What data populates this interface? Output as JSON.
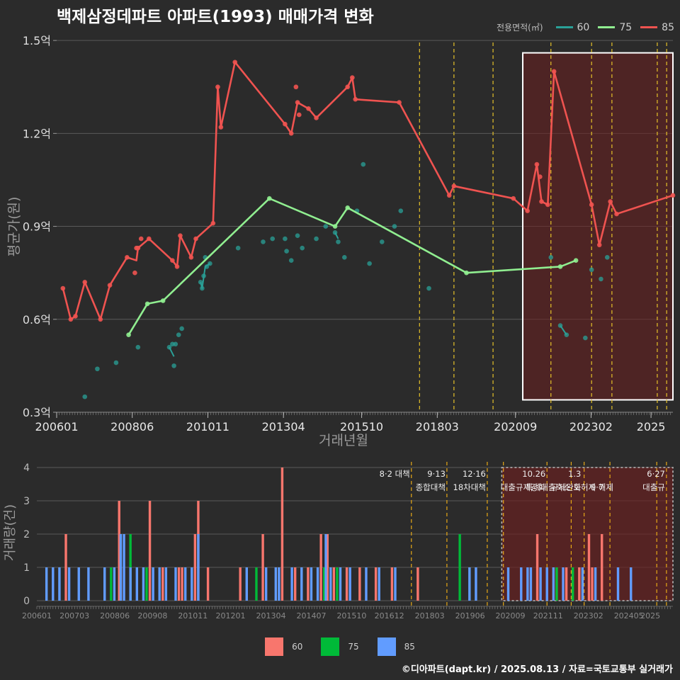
{
  "title": "백제삼정데파트 아파트(1993) 매매가격 변화",
  "credit": "©디아파트(dapt.kr) / 2025.08.13 / 자료=국토교통부 실거래가",
  "legend": {
    "title": "전용면적(㎡)",
    "items": [
      {
        "label": "60",
        "line_color": "#2aa198",
        "bar_color": "#f8766d"
      },
      {
        "label": "75",
        "line_color": "#90ee90",
        "bar_color": "#00ba38"
      },
      {
        "label": "85",
        "line_color": "#ef5350",
        "bar_color": "#619cff"
      }
    ]
  },
  "chart_data": [
    {
      "type": "line",
      "ylabel": "평균가(원)",
      "xlabel": "거래년월",
      "y_ticks": [
        {
          "v": 0.3,
          "label": "0.3억"
        },
        {
          "v": 0.6,
          "label": "0.6억"
        },
        {
          "v": 0.9,
          "label": "0.9억"
        },
        {
          "v": 1.2,
          "label": "1.2억"
        },
        {
          "v": 1.5,
          "label": "1.5억"
        }
      ],
      "x_ticks": [
        "200601",
        "200806",
        "201011",
        "201304",
        "201510",
        "201803",
        "202009",
        "202302",
        "2025"
      ],
      "xlim": [
        2006.0,
        2025.7
      ],
      "ylim": [
        0.3,
        1.53
      ],
      "vlines": [
        2017.6,
        2018.7,
        2019.95,
        2021.8,
        2023.1,
        2023.75,
        2025.2,
        2025.5
      ],
      "highlight_box": {
        "x0": 2020.9,
        "x1": 2025.7,
        "y0": 0.34,
        "y1": 1.46
      },
      "series": [
        {
          "name": "60",
          "color": "#2aa198",
          "points": [
            [
              2006.9,
              0.35
            ],
            [
              2007.3,
              0.44
            ],
            [
              2007.9,
              0.46
            ],
            [
              2008.6,
              0.51
            ],
            [
              2009.6,
              0.51
            ],
            [
              2009.7,
              0.52
            ],
            [
              2009.75,
              0.45
            ],
            [
              2009.8,
              0.52
            ],
            [
              2009.9,
              0.55
            ],
            [
              2010.0,
              0.57
            ],
            [
              2010.6,
              0.72
            ],
            [
              2010.65,
              0.7
            ],
            [
              2010.7,
              0.74
            ],
            [
              2010.75,
              0.8
            ],
            [
              2010.8,
              0.77
            ],
            [
              2010.9,
              0.78
            ],
            [
              2011.8,
              0.83
            ],
            [
              2012.6,
              0.85
            ],
            [
              2012.9,
              0.86
            ],
            [
              2013.3,
              0.86
            ],
            [
              2013.35,
              0.82
            ],
            [
              2013.5,
              0.79
            ],
            [
              2013.7,
              0.87
            ],
            [
              2013.85,
              0.83
            ],
            [
              2014.3,
              0.86
            ],
            [
              2014.6,
              0.9
            ],
            [
              2014.9,
              0.88
            ],
            [
              2015.0,
              0.85
            ],
            [
              2015.2,
              0.8
            ],
            [
              2015.6,
              0.95
            ],
            [
              2015.8,
              1.1
            ],
            [
              2016.0,
              0.78
            ],
            [
              2016.4,
              0.85
            ],
            [
              2016.8,
              0.9
            ],
            [
              2017.0,
              0.95
            ],
            [
              2017.9,
              0.7
            ],
            [
              2021.8,
              0.8
            ],
            [
              2022.1,
              0.58
            ],
            [
              2022.3,
              0.55
            ],
            [
              2022.9,
              0.54
            ],
            [
              2023.1,
              0.76
            ],
            [
              2023.4,
              0.73
            ],
            [
              2023.6,
              0.8
            ]
          ],
          "lines": [
            [
              [
                2009.6,
                0.51
              ],
              [
                2009.75,
                0.48
              ]
            ],
            [
              [
                2010.6,
                0.72
              ],
              [
                2010.65,
                0.7
              ],
              [
                2010.75,
                0.77
              ],
              [
                2010.9,
                0.78
              ]
            ],
            [
              [
                2014.9,
                0.88
              ],
              [
                2015.0,
                0.86
              ]
            ],
            [
              [
                2022.1,
                0.58
              ],
              [
                2022.3,
                0.55
              ]
            ]
          ]
        },
        {
          "name": "75",
          "color": "#90ee90",
          "points": [
            [
              2008.3,
              0.55
            ],
            [
              2008.9,
              0.65
            ],
            [
              2009.4,
              0.66
            ],
            [
              2012.8,
              0.99
            ],
            [
              2014.9,
              0.9
            ],
            [
              2015.3,
              0.96
            ],
            [
              2019.1,
              0.75
            ],
            [
              2022.1,
              0.77
            ],
            [
              2022.6,
              0.79
            ]
          ],
          "lines": [
            [
              [
                2008.3,
                0.55
              ],
              [
                2008.9,
                0.65
              ],
              [
                2009.4,
                0.66
              ],
              [
                2012.8,
                0.99
              ],
              [
                2014.9,
                0.9
              ],
              [
                2015.3,
                0.96
              ],
              [
                2019.1,
                0.75
              ],
              [
                2022.1,
                0.77
              ],
              [
                2022.6,
                0.79
              ]
            ]
          ]
        },
        {
          "name": "85",
          "color": "#ef5350",
          "points": [
            [
              2006.2,
              0.7
            ],
            [
              2006.45,
              0.6
            ],
            [
              2006.6,
              0.61
            ],
            [
              2006.9,
              0.72
            ],
            [
              2007.4,
              0.6
            ],
            [
              2007.7,
              0.71
            ],
            [
              2008.25,
              0.8
            ],
            [
              2008.5,
              0.75
            ],
            [
              2008.55,
              0.83
            ],
            [
              2008.6,
              0.83
            ],
            [
              2008.7,
              0.86
            ],
            [
              2008.95,
              0.86
            ],
            [
              2009.7,
              0.79
            ],
            [
              2009.85,
              0.77
            ],
            [
              2009.95,
              0.87
            ],
            [
              2010.3,
              0.8
            ],
            [
              2010.45,
              0.86
            ],
            [
              2011.0,
              0.91
            ],
            [
              2011.15,
              1.35
            ],
            [
              2011.25,
              1.22
            ],
            [
              2011.7,
              1.43
            ],
            [
              2013.3,
              1.23
            ],
            [
              2013.5,
              1.2
            ],
            [
              2013.65,
              1.35
            ],
            [
              2013.7,
              1.3
            ],
            [
              2013.75,
              1.26
            ],
            [
              2014.05,
              1.28
            ],
            [
              2014.3,
              1.25
            ],
            [
              2015.3,
              1.35
            ],
            [
              2015.45,
              1.38
            ],
            [
              2015.55,
              1.31
            ],
            [
              2016.95,
              1.3
            ],
            [
              2018.55,
              1.0
            ],
            [
              2018.7,
              1.03
            ],
            [
              2020.6,
              0.99
            ],
            [
              2021.05,
              0.95
            ],
            [
              2021.35,
              1.1
            ],
            [
              2021.45,
              1.06
            ],
            [
              2021.5,
              0.98
            ],
            [
              2021.7,
              0.97
            ],
            [
              2021.9,
              1.4
            ],
            [
              2023.1,
              0.97
            ],
            [
              2023.35,
              0.84
            ],
            [
              2023.7,
              0.98
            ],
            [
              2023.9,
              0.94
            ],
            [
              2025.7,
              1.0
            ]
          ],
          "lines": [
            [
              [
                2006.2,
                0.7
              ],
              [
                2006.45,
                0.6
              ],
              [
                2006.6,
                0.61
              ],
              [
                2006.9,
                0.72
              ],
              [
                2007.4,
                0.6
              ],
              [
                2007.7,
                0.71
              ],
              [
                2008.25,
                0.8
              ],
              [
                2008.55,
                0.79
              ],
              [
                2008.6,
                0.83
              ],
              [
                2008.95,
                0.86
              ],
              [
                2009.7,
                0.79
              ],
              [
                2009.85,
                0.77
              ],
              [
                2009.95,
                0.87
              ],
              [
                2010.3,
                0.8
              ],
              [
                2010.45,
                0.86
              ],
              [
                2011.0,
                0.91
              ],
              [
                2011.15,
                1.35
              ],
              [
                2011.25,
                1.22
              ],
              [
                2011.7,
                1.43
              ],
              [
                2013.3,
                1.23
              ],
              [
                2013.5,
                1.2
              ],
              [
                2013.7,
                1.3
              ],
              [
                2014.05,
                1.28
              ],
              [
                2014.3,
                1.25
              ],
              [
                2015.3,
                1.35
              ],
              [
                2015.45,
                1.38
              ],
              [
                2015.55,
                1.31
              ],
              [
                2016.95,
                1.3
              ],
              [
                2018.55,
                1.0
              ],
              [
                2018.7,
                1.03
              ],
              [
                2020.6,
                0.99
              ],
              [
                2021.05,
                0.95
              ],
              [
                2021.35,
                1.1
              ],
              [
                2021.5,
                0.98
              ],
              [
                2021.7,
                0.97
              ],
              [
                2021.9,
                1.4
              ],
              [
                2023.1,
                0.97
              ],
              [
                2023.35,
                0.84
              ],
              [
                2023.7,
                0.98
              ],
              [
                2023.9,
                0.94
              ],
              [
                2025.7,
                1.0
              ]
            ]
          ]
        }
      ]
    },
    {
      "type": "bar",
      "ylabel": "거래량(건)",
      "x_ticks": [
        "200601",
        "200703",
        "200806",
        "200908",
        "201011",
        "201201",
        "201304",
        "201407",
        "201510",
        "201612",
        "201803",
        "201906",
        "202009",
        "202111",
        "202302",
        "202405",
        "2025"
      ],
      "y_ticks": [
        0,
        1,
        2,
        3,
        4
      ],
      "xlim": [
        2006.0,
        2025.7
      ],
      "ylim": [
        0,
        4
      ],
      "highlight_box": {
        "x0": 2020.4,
        "x1": 2025.7
      },
      "annotations": [
        {
          "x": 2017.6,
          "line1": "8·2 대책",
          "line2": ""
        },
        {
          "x": 2018.7,
          "line1": "9·13",
          "line2": "종합대책"
        },
        {
          "x": 2019.95,
          "line1": "12·16",
          "line2": "18차대책"
        },
        {
          "x": 2021.8,
          "line1": "10.26",
          "line2": "대출규제강화"
        },
        {
          "x": 2022.9,
          "line1": "1.3",
          "line2": "규제완화"
        },
        {
          "x": 2023.6,
          "line1": "",
          "line2": "9·7"
        },
        {
          "x": 2023.9,
          "line1": "",
          "line2": "특례대출축소 토허제 해제"
        },
        {
          "x": 2025.5,
          "line1": "6·27",
          "line2": "대출규"
        }
      ],
      "vlines": [
        2017.6,
        2018.7,
        2019.95,
        2020.45,
        2021.8,
        2022.55,
        2022.95,
        2023.75,
        2025.2,
        2025.5
      ],
      "series": [
        {
          "name": "60",
          "color": "#f8766d",
          "x": [
            2006.9,
            2008.55,
            2008.6,
            2009.5,
            2009.9,
            2010.4,
            2010.5,
            2010.9,
            2011.0,
            2011.3,
            2012.3,
            2013.0,
            2013.6,
            2014.0,
            2014.4,
            2014.8,
            2015.0,
            2015.2,
            2015.6,
            2016.0,
            2016.5,
            2017.0,
            2017.8,
            2021.5,
            2022.1,
            2022.4,
            2022.8,
            2023.1,
            2023.2,
            2023.5
          ],
          "values": [
            2,
            3,
            1,
            3,
            1,
            1,
            1,
            2,
            3,
            1,
            1,
            2,
            4,
            1,
            1,
            2,
            2,
            1,
            1,
            1,
            1,
            1,
            1,
            2,
            1,
            1,
            1,
            2,
            1,
            2
          ]
        },
        {
          "name": "75",
          "color": "#00ba38",
          "x": [
            2008.3,
            2008.9,
            2009.4,
            2012.8,
            2014.9,
            2015.3,
            2019.1,
            2022.1,
            2022.6
          ],
          "values": [
            1,
            2,
            1,
            1,
            1,
            1,
            2,
            1,
            1
          ]
        },
        {
          "name": "85",
          "color": "#619cff",
          "x": [
            2006.3,
            2006.5,
            2006.7,
            2007.0,
            2007.3,
            2007.6,
            2008.1,
            2008.4,
            2008.6,
            2008.7,
            2008.9,
            2009.1,
            2009.3,
            2009.6,
            2009.8,
            2010.0,
            2010.3,
            2010.6,
            2010.8,
            2011.0,
            2012.5,
            2013.1,
            2013.4,
            2013.5,
            2013.9,
            2014.2,
            2014.5,
            2014.7,
            2014.95,
            2015.1,
            2015.4,
            2015.7,
            2016.2,
            2016.6,
            2017.1,
            2019.4,
            2019.6,
            2020.6,
            2021.0,
            2021.2,
            2021.3,
            2021.6,
            2021.8,
            2022.0,
            2022.3,
            2022.9,
            2023.3,
            2024.0,
            2024.4
          ],
          "values": [
            1,
            1,
            1,
            1,
            1,
            1,
            1,
            1,
            2,
            2,
            1,
            1,
            1,
            1,
            1,
            1,
            1,
            1,
            1,
            2,
            1,
            1,
            1,
            1,
            1,
            1,
            1,
            1,
            2,
            1,
            1,
            1,
            1,
            1,
            1,
            1,
            1,
            1,
            1,
            1,
            1,
            1,
            1,
            1,
            1,
            1,
            1,
            1,
            1
          ]
        }
      ]
    }
  ]
}
